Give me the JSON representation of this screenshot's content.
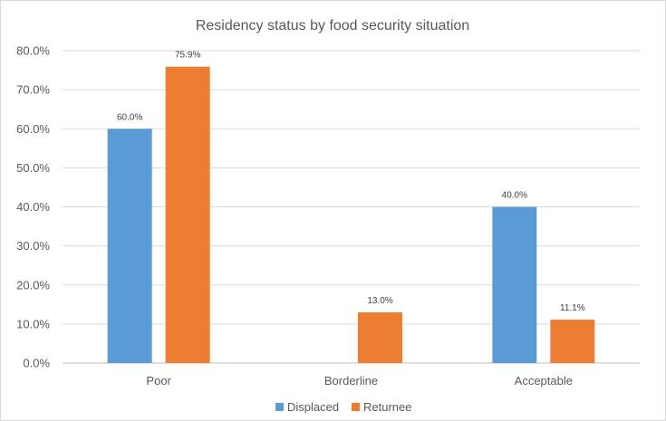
{
  "chart_data": {
    "type": "bar",
    "title": "Residency status by food security situation",
    "xlabel": "",
    "ylabel": "",
    "categories": [
      "Poor",
      "Borderline",
      "Acceptable"
    ],
    "series": [
      {
        "name": "Displaced",
        "color": "#5b9bd5",
        "values": [
          60.0,
          null,
          40.0
        ],
        "labels": [
          "60.0%",
          "",
          "40.0%"
        ]
      },
      {
        "name": "Returnee",
        "color": "#ed7d31",
        "values": [
          75.9,
          13.0,
          11.1
        ],
        "labels": [
          "75.9%",
          "13.0%",
          "11.1%"
        ]
      }
    ],
    "ylim": [
      0,
      80
    ],
    "yticks": [
      0,
      10,
      20,
      30,
      40,
      50,
      60,
      70,
      80
    ],
    "ytick_labels": [
      "0.0%",
      "10.0%",
      "20.0%",
      "30.0%",
      "40.0%",
      "50.0%",
      "60.0%",
      "70.0%",
      "80.0%"
    ],
    "grid": true,
    "legend_position": "bottom"
  }
}
